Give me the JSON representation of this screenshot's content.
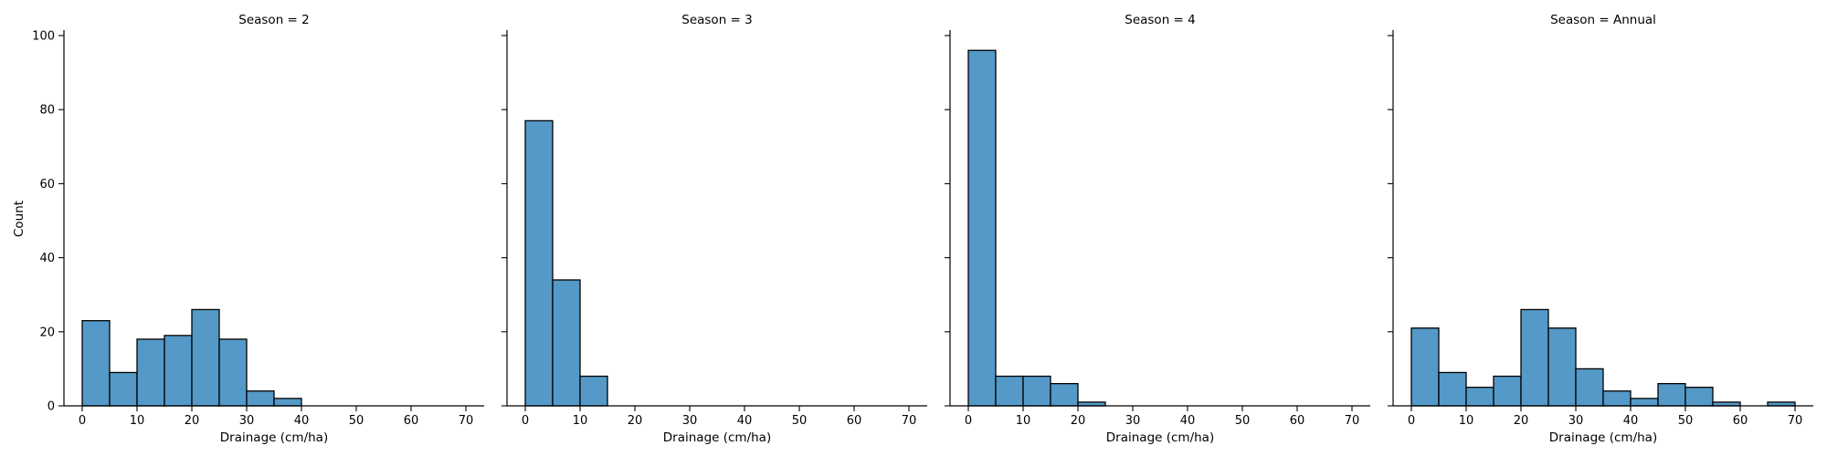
{
  "chart_data": {
    "type": "bar",
    "facet_variable": "Season",
    "bin_width": 5,
    "bin_edges": [
      0,
      5,
      10,
      15,
      20,
      25,
      30,
      35,
      40,
      45,
      50,
      55,
      60,
      65,
      70
    ],
    "xlim": [
      0,
      70
    ],
    "ylim": [
      0,
      100
    ],
    "x_ticks": [
      0,
      10,
      20,
      30,
      40,
      50,
      60,
      70
    ],
    "y_ticks": [
      0,
      20,
      40,
      60,
      80,
      100
    ],
    "xlabel": "Drainage (cm/ha)",
    "ylabel": "Count",
    "bar_color": "#5499c7",
    "edge_color": "#000000",
    "grid": false,
    "panels": [
      {
        "title": "Season = 2",
        "bins": [
          {
            "x0": 0,
            "x1": 5,
            "count": 23
          },
          {
            "x0": 5,
            "x1": 10,
            "count": 9
          },
          {
            "x0": 10,
            "x1": 15,
            "count": 18
          },
          {
            "x0": 15,
            "x1": 20,
            "count": 19
          },
          {
            "x0": 20,
            "x1": 25,
            "count": 26
          },
          {
            "x0": 25,
            "x1": 30,
            "count": 18
          },
          {
            "x0": 30,
            "x1": 35,
            "count": 4
          },
          {
            "x0": 35,
            "x1": 40,
            "count": 2
          }
        ]
      },
      {
        "title": "Season = 3",
        "bins": [
          {
            "x0": 0,
            "x1": 5,
            "count": 77
          },
          {
            "x0": 5,
            "x1": 10,
            "count": 34
          },
          {
            "x0": 10,
            "x1": 15,
            "count": 8
          }
        ]
      },
      {
        "title": "Season = 4",
        "bins": [
          {
            "x0": 0,
            "x1": 5,
            "count": 96
          },
          {
            "x0": 5,
            "x1": 10,
            "count": 8
          },
          {
            "x0": 10,
            "x1": 15,
            "count": 8
          },
          {
            "x0": 15,
            "x1": 20,
            "count": 6
          },
          {
            "x0": 20,
            "x1": 25,
            "count": 1
          }
        ]
      },
      {
        "title": "Season = Annual",
        "bins": [
          {
            "x0": 0,
            "x1": 5,
            "count": 21
          },
          {
            "x0": 5,
            "x1": 10,
            "count": 9
          },
          {
            "x0": 10,
            "x1": 15,
            "count": 5
          },
          {
            "x0": 15,
            "x1": 20,
            "count": 8
          },
          {
            "x0": 20,
            "x1": 25,
            "count": 26
          },
          {
            "x0": 25,
            "x1": 30,
            "count": 21
          },
          {
            "x0": 30,
            "x1": 35,
            "count": 10
          },
          {
            "x0": 35,
            "x1": 40,
            "count": 4
          },
          {
            "x0": 40,
            "x1": 45,
            "count": 2
          },
          {
            "x0": 45,
            "x1": 50,
            "count": 6
          },
          {
            "x0": 50,
            "x1": 55,
            "count": 5
          },
          {
            "x0": 55,
            "x1": 60,
            "count": 1
          },
          {
            "x0": 65,
            "x1": 70,
            "count": 1
          }
        ]
      }
    ]
  }
}
